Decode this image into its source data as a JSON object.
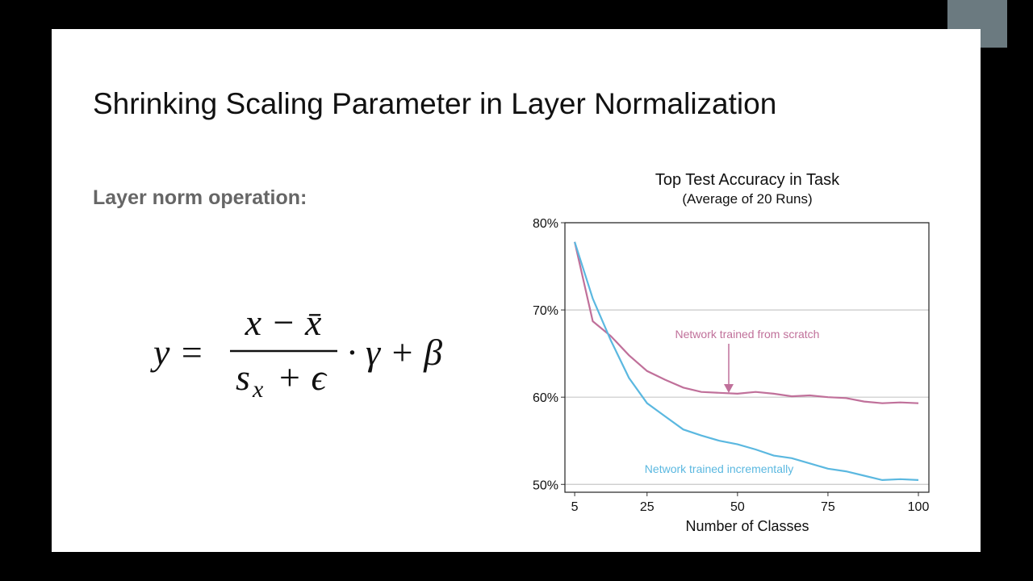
{
  "slide": {
    "title": "Shrinking Scaling Parameter in Layer Normalization",
    "subtitle": "Layer norm operation:",
    "formula": {
      "lhs": "y =",
      "numerator": "x − x̄",
      "denominator_base": "s",
      "denominator_subscript": "x",
      "denominator_rest": "+ ϵ",
      "rhs": "· γ + β"
    }
  },
  "chart_data": {
    "type": "line",
    "title": "Top Test Accuracy in Task",
    "subtitle": "(Average of 20 Runs)",
    "x_label": "Number of Classes",
    "x": [
      5,
      10,
      15,
      20,
      25,
      30,
      35,
      40,
      45,
      50,
      55,
      60,
      65,
      70,
      75,
      80,
      85,
      90,
      95,
      100
    ],
    "series": [
      {
        "name": "Network trained from scratch",
        "color": "#c0709a",
        "values": [
          77.8,
          68.7,
          67.0,
          64.8,
          63.0,
          62.0,
          61.1,
          60.6,
          60.5,
          60.4,
          60.6,
          60.4,
          60.1,
          60.2,
          60.0,
          59.9,
          59.5,
          59.3,
          59.4,
          59.3
        ]
      },
      {
        "name": "Network trained incrementally",
        "color": "#5bb8e0",
        "values": [
          77.8,
          71.3,
          66.5,
          62.2,
          59.3,
          57.8,
          56.3,
          55.6,
          55.0,
          54.6,
          54.0,
          53.3,
          53.0,
          52.4,
          51.8,
          51.5,
          51.0,
          50.5,
          50.6,
          50.5
        ]
      }
    ],
    "xlim": [
      2.3,
      102.9
    ],
    "ylim": [
      49.1,
      80
    ],
    "xticks": [
      5,
      25,
      50,
      75,
      100
    ],
    "yticks": [
      {
        "value": 50,
        "label": "50%"
      },
      {
        "value": 60,
        "label": "60%"
      },
      {
        "value": 70,
        "label": "70%"
      },
      {
        "value": 80,
        "label": "80%"
      }
    ],
    "grid": true
  }
}
